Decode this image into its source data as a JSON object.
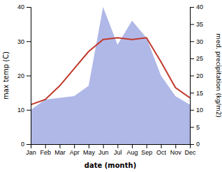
{
  "chart_data": {
    "type": "line",
    "xlabel": "date (month)",
    "ylabel": "max temp (C)",
    "y2label": "med. precipitation (kg/m2)",
    "categories": [
      "Jan",
      "Feb",
      "Mar",
      "Apr",
      "May",
      "Jun",
      "Jul",
      "Aug",
      "Sep",
      "Oct",
      "Nov",
      "Dec"
    ],
    "series": [
      {
        "type": "area",
        "axis": "y2",
        "color": "#b0b8e8",
        "values": [
          10.0,
          13.0,
          13.5,
          14.0,
          17.0,
          40.0,
          29.0,
          36.0,
          31.0,
          20.0,
          14.0,
          11.5
        ]
      },
      {
        "type": "line",
        "color": "#c0392b",
        "values": [
          11.5,
          13.0,
          17.0,
          22.0,
          27.0,
          30.5,
          31.0,
          30.5,
          31.0,
          24.0,
          16.5,
          13.5
        ]
      }
    ],
    "ylim": [
      0,
      40
    ],
    "yticks": [
      0,
      10,
      20,
      30,
      40
    ],
    "y2lim": [
      0,
      40
    ],
    "y2ticks": [
      0,
      5,
      10,
      15,
      20,
      25,
      30,
      35,
      40
    ]
  }
}
